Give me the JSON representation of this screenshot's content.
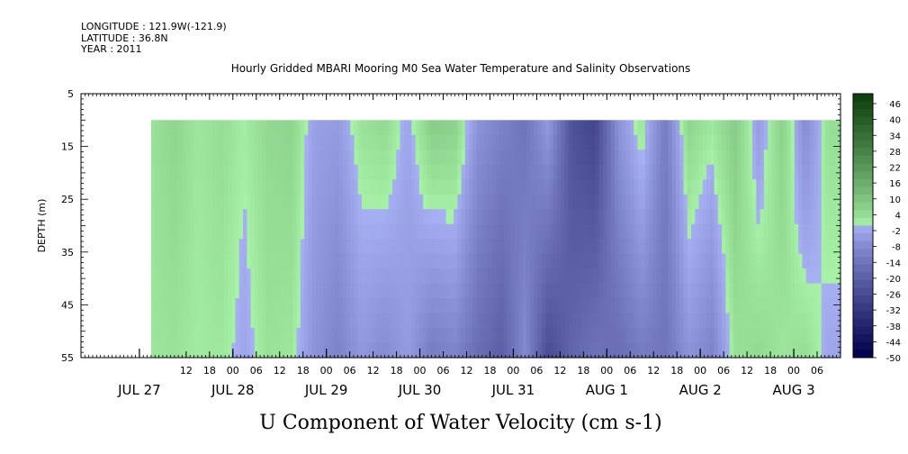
{
  "header": {
    "longitude": "LONGITUDE : 121.9W(-121.9)",
    "latitude": "LATITUDE : 36.8N",
    "year": "YEAR : 2011"
  },
  "chart_data": {
    "type": "heatmap",
    "title": "Hourly Gridded MBARI Mooring M0 Sea Water Temperature and Salinity Observations",
    "xlabel": "U Component of Water Velocity (cm s-1)",
    "ylabel": "DEPTH (m)",
    "ylim": [
      5,
      55
    ],
    "y_inverted": true,
    "y_ticks": [
      5,
      15,
      25,
      35,
      45,
      55
    ],
    "data_depth_range": [
      10,
      55
    ],
    "x_axis": {
      "start": "2011-07-26T09:00",
      "end": "2011-08-03T12:00",
      "data_start": "2011-07-27T03:00",
      "hour_ticks": [
        {
          "t": "2011-07-27T12:00",
          "label": "12"
        },
        {
          "t": "2011-07-27T18:00",
          "label": "18"
        },
        {
          "t": "2011-07-28T00:00",
          "label": "00"
        },
        {
          "t": "2011-07-28T06:00",
          "label": "06"
        },
        {
          "t": "2011-07-28T12:00",
          "label": "12"
        },
        {
          "t": "2011-07-28T18:00",
          "label": "18"
        },
        {
          "t": "2011-07-29T00:00",
          "label": "00"
        },
        {
          "t": "2011-07-29T06:00",
          "label": "06"
        },
        {
          "t": "2011-07-29T12:00",
          "label": "12"
        },
        {
          "t": "2011-07-29T18:00",
          "label": "18"
        },
        {
          "t": "2011-07-30T00:00",
          "label": "00"
        },
        {
          "t": "2011-07-30T06:00",
          "label": "06"
        },
        {
          "t": "2011-07-30T12:00",
          "label": "12"
        },
        {
          "t": "2011-07-30T18:00",
          "label": "18"
        },
        {
          "t": "2011-07-31T00:00",
          "label": "00"
        },
        {
          "t": "2011-07-31T06:00",
          "label": "06"
        },
        {
          "t": "2011-07-31T12:00",
          "label": "12"
        },
        {
          "t": "2011-07-31T18:00",
          "label": "18"
        },
        {
          "t": "2011-08-01T00:00",
          "label": "00"
        },
        {
          "t": "2011-08-01T06:00",
          "label": "06"
        },
        {
          "t": "2011-08-01T12:00",
          "label": "12"
        },
        {
          "t": "2011-08-01T18:00",
          "label": "18"
        },
        {
          "t": "2011-08-02T00:00",
          "label": "00"
        },
        {
          "t": "2011-08-02T06:00",
          "label": "06"
        },
        {
          "t": "2011-08-02T12:00",
          "label": "12"
        },
        {
          "t": "2011-08-02T18:00",
          "label": "18"
        },
        {
          "t": "2011-08-03T00:00",
          "label": "00"
        },
        {
          "t": "2011-08-03T06:00",
          "label": "06"
        }
      ],
      "day_labels": [
        {
          "t": "2011-07-27T00:00",
          "label": "JUL 27"
        },
        {
          "t": "2011-07-28T00:00",
          "label": "JUL 28"
        },
        {
          "t": "2011-07-29T00:00",
          "label": "JUL 29"
        },
        {
          "t": "2011-07-30T00:00",
          "label": "JUL 30"
        },
        {
          "t": "2011-07-31T00:00",
          "label": "JUL 31"
        },
        {
          "t": "2011-08-01T00:00",
          "label": "AUG  1"
        },
        {
          "t": "2011-08-02T00:00",
          "label": "AUG  2"
        },
        {
          "t": "2011-08-03T00:00",
          "label": "AUG  3"
        }
      ]
    },
    "colorbar": {
      "range": [
        -50,
        50
      ],
      "labels": [
        "46",
        "40",
        "34",
        "28",
        "22",
        "16",
        "10",
        "4",
        "-2",
        "-8",
        "-14",
        "-20",
        "-26",
        "-32",
        "-38",
        "-44",
        "-50"
      ],
      "low_color": "#00004a",
      "mid_low_color": "#a8b0f4",
      "mid_high_color": "#a8f2a8",
      "high_color": "#0b3d0b"
    },
    "velocity_profile": {
      "times": [
        "07-27 03",
        "07-27 09",
        "07-27 15",
        "07-27 21",
        "07-28 03",
        "07-28 09",
        "07-28 15",
        "07-28 21",
        "07-29 03",
        "07-29 09",
        "07-29 15",
        "07-29 21",
        "07-30 03",
        "07-30 09",
        "07-30 15",
        "07-30 21",
        "07-31 03",
        "07-31 09",
        "07-31 15",
        "07-31 21",
        "08-01 03",
        "08-01 09",
        "08-01 15",
        "08-01 21",
        "08-02 03",
        "08-02 09",
        "08-02 15",
        "08-02 21",
        "08-03 03",
        "08-03 09"
      ],
      "surface_values": [
        3,
        6,
        2,
        4,
        1,
        5,
        6,
        -3,
        -4,
        3,
        5,
        -2,
        8,
        7,
        -6,
        -10,
        -14,
        -4,
        -24,
        -28,
        -6,
        3,
        -12,
        6,
        2,
        8,
        -4,
        7,
        -8,
        4
      ],
      "bottom_values": [
        2,
        3,
        1,
        2,
        -2,
        3,
        2,
        -6,
        -10,
        -5,
        -8,
        -4,
        -12,
        -10,
        -16,
        -20,
        -8,
        -26,
        -18,
        -14,
        -16,
        -12,
        -14,
        -6,
        -10,
        3,
        5,
        2,
        4,
        -2
      ]
    }
  }
}
